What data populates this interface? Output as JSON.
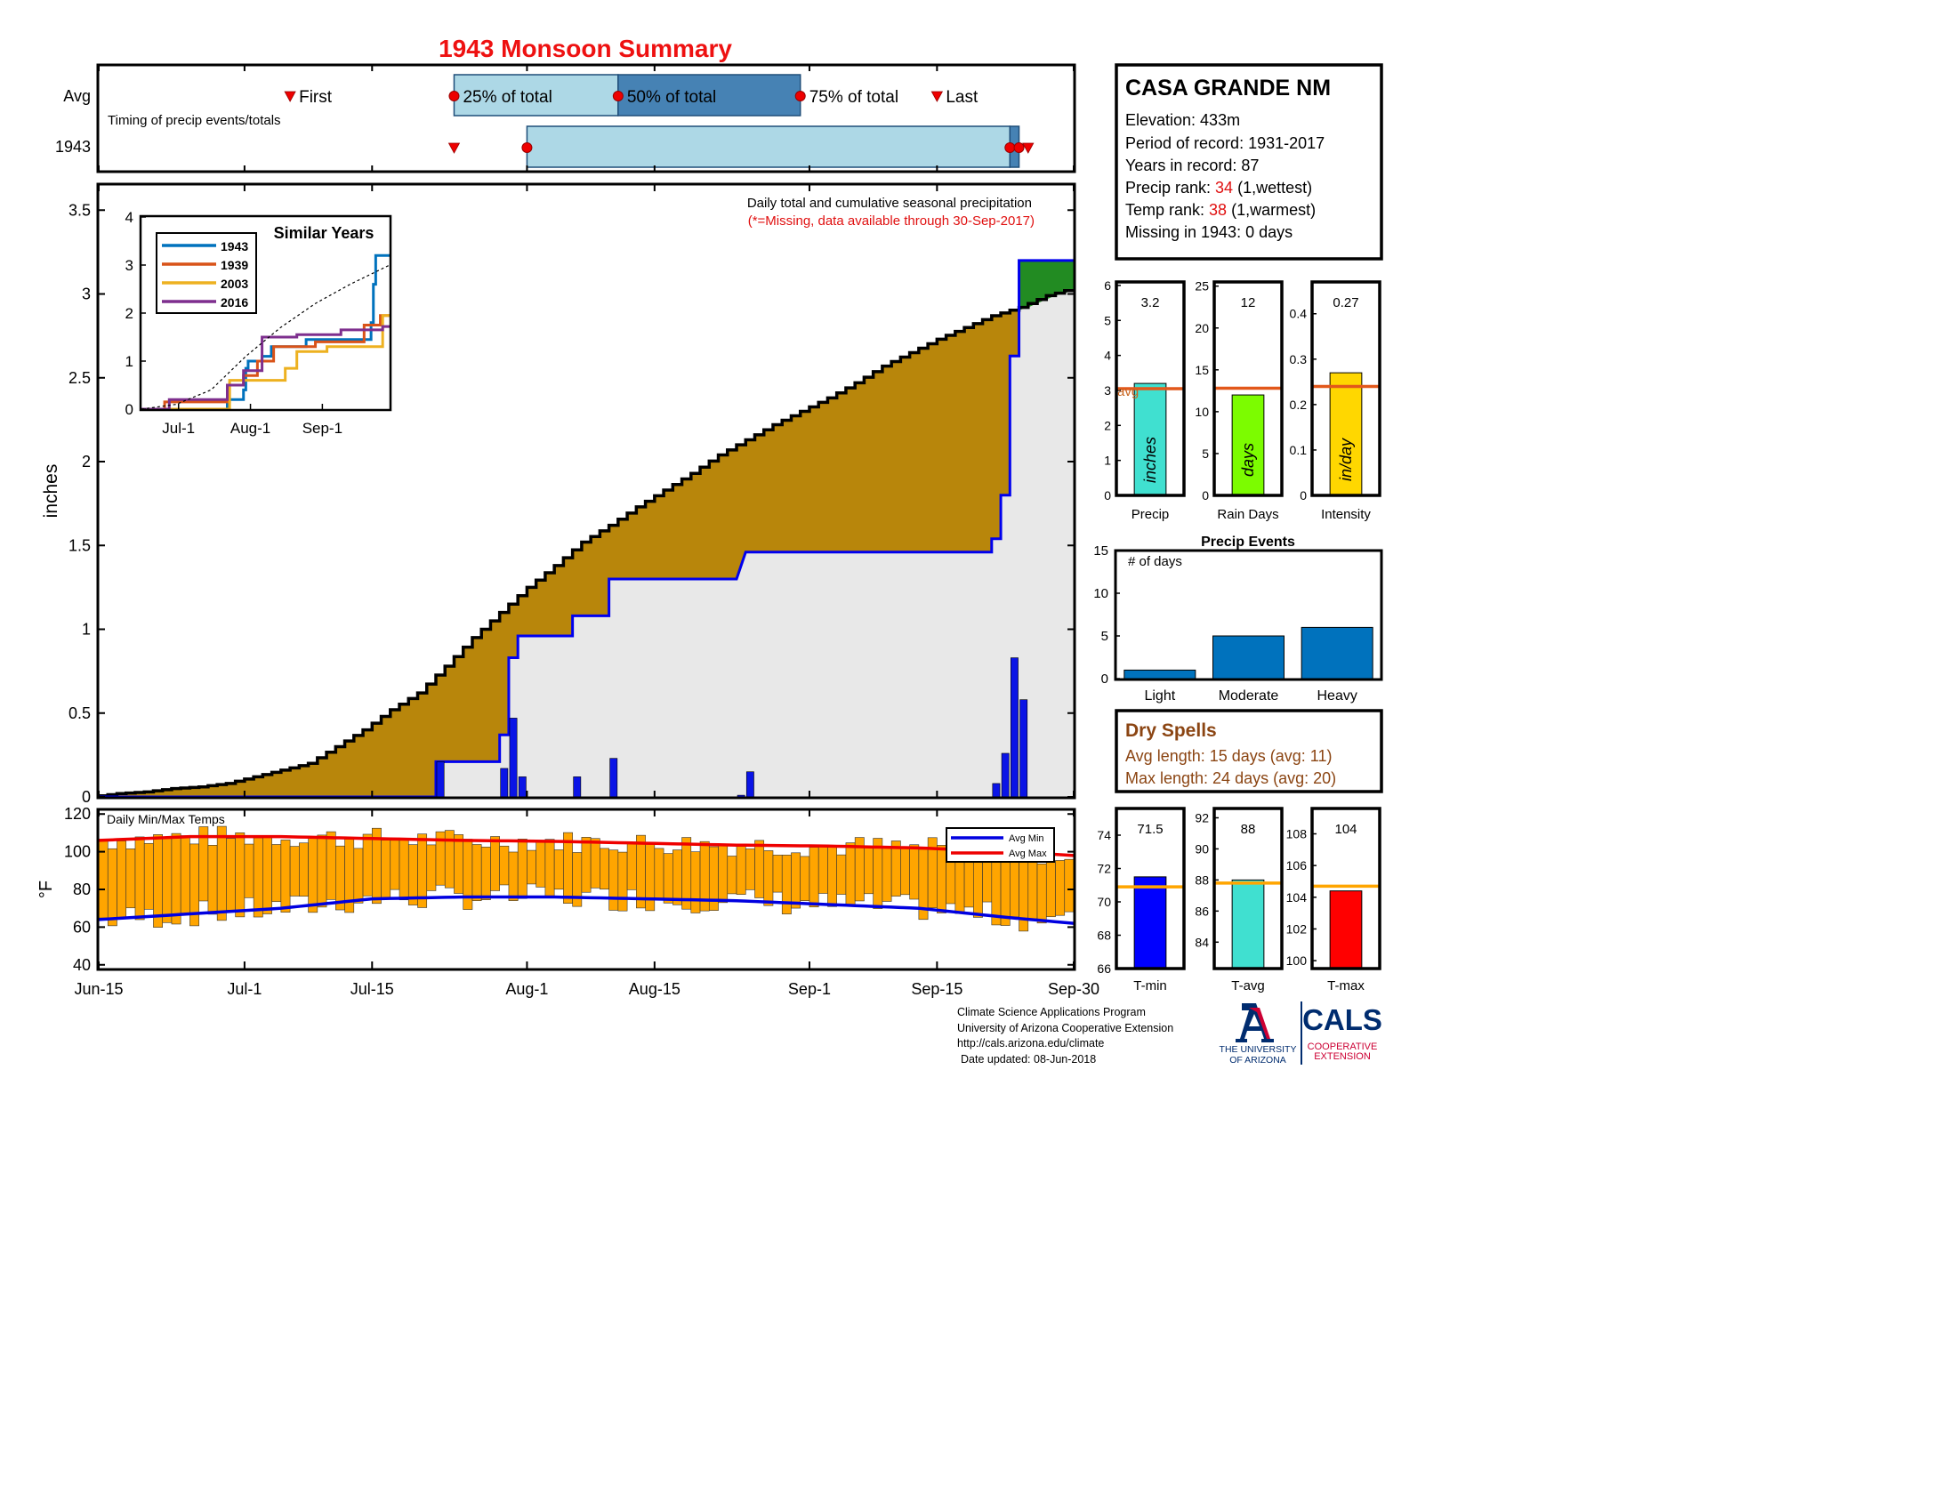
{
  "title": "1943 Monsoon Summary",
  "station": {
    "name": "CASA GRANDE NM",
    "elevation": "Elevation: 433m",
    "period": "Period of record: 1931-2017",
    "years": "Years in record: 87",
    "precip_rank_label": "Precip rank: ",
    "precip_rank_value": "34",
    "precip_rank_note": " (1,wettest)",
    "temp_rank_label": "Temp rank: ",
    "temp_rank_value": "38",
    "temp_rank_note": " (1,warmest)",
    "missing": "Missing in 1943: 0 days"
  },
  "timing": {
    "row_avg": "Avg",
    "row_year": "1943",
    "caption": "Timing of precip events/totals",
    "first": "First",
    "q25": "25% of total",
    "q50": "50% of total",
    "q75": "75% of total",
    "last": "Last",
    "avg": {
      "first": 21,
      "q25": 39,
      "q50": 57,
      "q75": 77,
      "last": 92
    },
    "year": {
      "first": 39,
      "q25": 47,
      "q50": 100,
      "q75": 101,
      "last": 102
    }
  },
  "dates": {
    "ticks": [
      "Jun-15",
      "Jul-1",
      "Jul-15",
      "Aug-1",
      "Aug-15",
      "Sep-1",
      "Sep-15",
      "Sep-30"
    ],
    "tick_days": [
      0,
      16,
      30,
      47,
      61,
      78,
      92,
      107
    ]
  },
  "main": {
    "note1": "Daily total and cumulative seasonal precipitation",
    "note2": "(*=Missing, data available through 30-Sep-2017)",
    "ylabel": "inches",
    "yticks": [
      "0",
      "0.5",
      "1",
      "1.5",
      "2",
      "2.5",
      "3",
      "3.5"
    ]
  },
  "similar": {
    "title": "Similar Years",
    "xticks": [
      "Jul-1",
      "Aug-1",
      "Sep-1"
    ],
    "yticks": [
      "0",
      "1",
      "2",
      "3",
      "4"
    ],
    "years": [
      {
        "name": "1943",
        "color": "#0072BD"
      },
      {
        "name": "1939",
        "color": "#D95319"
      },
      {
        "name": "2003",
        "color": "#EDB120"
      },
      {
        "name": "2016",
        "color": "#7E2F8E"
      }
    ]
  },
  "temps": {
    "label": "Daily Min/Max Temps",
    "ylabel": "°F",
    "yticks": [
      "40",
      "60",
      "80",
      "100",
      "120"
    ],
    "legend_min": "Avg Min",
    "legend_max": "Avg Max"
  },
  "stats": {
    "precip": {
      "label": "Precip",
      "value_text": "3.2",
      "unit": "inches",
      "value": 3.2,
      "avg": 3.05,
      "yticks": [
        "0",
        "1",
        "2",
        "3",
        "4",
        "5",
        "6"
      ],
      "avg_label": "avg",
      "color": "#40E0D0"
    },
    "raindays": {
      "label": "Rain Days",
      "value_text": "12",
      "unit": "days",
      "value": 12,
      "avg": 12.8,
      "yticks": [
        "0",
        "5",
        "10",
        "15",
        "20",
        "25"
      ],
      "color": "#7CFC00"
    },
    "intensity": {
      "label": "Intensity",
      "value_text": "0.27",
      "unit": "in/day",
      "value": 0.27,
      "avg": 0.24,
      "yticks": [
        "0",
        "0.1",
        "0.2",
        "0.3",
        "0.4"
      ],
      "color": "#FFD700"
    }
  },
  "events": {
    "title": "Precip Events",
    "caption": "# of days",
    "yticks": [
      "0",
      "5",
      "10",
      "15"
    ],
    "categories": [
      "Light",
      "Moderate",
      "Heavy"
    ],
    "values": [
      1,
      5,
      6
    ]
  },
  "dry_spells": {
    "title": "Dry Spells",
    "avg_length": "Avg length: 15 days (avg: 11)",
    "max_length": "Max length: 24 days (avg: 20)"
  },
  "temp_stats": {
    "tmin": {
      "label": "T-min",
      "value_text": "71.5",
      "value": 71.5,
      "avg": 70.9,
      "yticks": [
        "66",
        "68",
        "70",
        "72",
        "74"
      ],
      "color": "#0000FF"
    },
    "tavg": {
      "label": "T-avg",
      "value_text": "88",
      "value": 88.0,
      "avg": 87.8,
      "yticks": [
        "84",
        "86",
        "88",
        "90",
        "92"
      ],
      "color": "#40E0D0"
    },
    "tmax": {
      "label": "T-max",
      "value_text": "104",
      "value": 104.4,
      "avg": 104.7,
      "yticks": [
        "100",
        "102",
        "104",
        "106",
        "108"
      ],
      "color": "#FF0000"
    }
  },
  "footer": {
    "line1": "Climate Science Applications Program",
    "line2": "University of Arizona Cooperative Extension",
    "line3": "http://cals.arizona.edu/climate",
    "line4": "Date updated: 08-Jun-2018"
  },
  "logos": {
    "ua_line1": "THE UNIVERSITY",
    "ua_line2": "OF ARIZONA",
    "cals": "CALS",
    "cals_line1": "COOPERATIVE",
    "cals_line2": "EXTENSION"
  },
  "chart_data": [
    {
      "type": "area",
      "title": "Daily total and cumulative seasonal precipitation",
      "ylabel": "inches",
      "xlabel": "",
      "x_unit": "day index from Jun-15",
      "ylim": [
        0,
        3.65
      ],
      "series": [
        {
          "name": "avg",
          "points": [
            [
              0,
              0
            ],
            [
              3,
              0.02
            ],
            [
              6,
              0.03
            ],
            [
              9,
              0.05
            ],
            [
              12,
              0.06
            ],
            [
              15,
              0.08
            ],
            [
              18,
              0.12
            ],
            [
              21,
              0.16
            ],
            [
              24,
              0.2
            ],
            [
              27,
              0.3
            ],
            [
              30,
              0.4
            ],
            [
              33,
              0.52
            ],
            [
              36,
              0.62
            ],
            [
              39,
              0.78
            ],
            [
              42,
              0.95
            ],
            [
              45,
              1.1
            ],
            [
              48,
              1.25
            ],
            [
              51,
              1.38
            ],
            [
              54,
              1.52
            ],
            [
              57,
              1.62
            ],
            [
              60,
              1.73
            ],
            [
              63,
              1.83
            ],
            [
              66,
              1.93
            ],
            [
              69,
              2.04
            ],
            [
              72,
              2.13
            ],
            [
              75,
              2.22
            ],
            [
              78,
              2.3
            ],
            [
              81,
              2.38
            ],
            [
              84,
              2.47
            ],
            [
              87,
              2.57
            ],
            [
              90,
              2.65
            ],
            [
              93,
              2.73
            ],
            [
              96,
              2.8
            ],
            [
              99,
              2.87
            ],
            [
              102,
              2.92
            ],
            [
              105,
              2.99
            ],
            [
              107,
              3.02
            ]
          ]
        },
        {
          "name": "1943",
          "points": [
            [
              0,
              0
            ],
            [
              37,
              0
            ],
            [
              37,
              0.21
            ],
            [
              44,
              0.21
            ],
            [
              44,
              0.37
            ],
            [
              45,
              0.37
            ],
            [
              45,
              0.83
            ],
            [
              46,
              0.83
            ],
            [
              46,
              0.96
            ],
            [
              51,
              0.96
            ],
            [
              51,
              0.96
            ],
            [
              52,
              0.96
            ],
            [
              52,
              1.08
            ],
            [
              56,
              1.08
            ],
            [
              56,
              1.3
            ],
            [
              70,
              1.3
            ],
            [
              70,
              1.3
            ],
            [
              71,
              1.46
            ],
            [
              90,
              1.46
            ],
            [
              98,
              1.46
            ],
            [
              98,
              1.54
            ],
            [
              99,
              1.54
            ],
            [
              99,
              1.8
            ],
            [
              100,
              1.8
            ],
            [
              100,
              2.63
            ],
            [
              101,
              2.63
            ],
            [
              101,
              3.2
            ],
            [
              107,
              3.2
            ]
          ]
        }
      ],
      "daily_bars": [
        [
          37,
          0.21
        ],
        [
          44,
          0.17
        ],
        [
          45,
          0.47
        ],
        [
          46,
          0.12
        ],
        [
          52,
          0.12
        ],
        [
          56,
          0.23
        ],
        [
          70,
          0.01
        ],
        [
          71,
          0.15
        ],
        [
          98,
          0.08
        ],
        [
          99,
          0.26
        ],
        [
          100,
          0.83
        ],
        [
          101,
          0.58
        ]
      ]
    },
    {
      "type": "line",
      "title": "Similar Years",
      "categories_note": "Jun-15 to Sep-30",
      "ylim": [
        0,
        4
      ],
      "series": [
        {
          "name": "1943",
          "points": [
            [
              0,
              0
            ],
            [
              37,
              0
            ],
            [
              37,
              0.2
            ],
            [
              44,
              0.2
            ],
            [
              44,
              0.4
            ],
            [
              45,
              0.4
            ],
            [
              45,
              0.85
            ],
            [
              46,
              0.85
            ],
            [
              46,
              1
            ],
            [
              52,
              1
            ],
            [
              52,
              1.1
            ],
            [
              56,
              1.1
            ],
            [
              56,
              1.3
            ],
            [
              71,
              1.3
            ],
            [
              71,
              1.45
            ],
            [
              99,
              1.45
            ],
            [
              99,
              1.8
            ],
            [
              100,
              1.8
            ],
            [
              100,
              2.6
            ],
            [
              101,
              2.6
            ],
            [
              101,
              3.2
            ],
            [
              107,
              3.2
            ]
          ]
        },
        {
          "name": "1939",
          "points": [
            [
              0,
              0
            ],
            [
              10,
              0
            ],
            [
              10,
              0.15
            ],
            [
              38,
              0.15
            ],
            [
              38,
              0.5
            ],
            [
              44,
              0.5
            ],
            [
              44,
              0.7
            ],
            [
              50,
              0.7
            ],
            [
              50,
              1.0
            ],
            [
              57,
              1.0
            ],
            [
              57,
              1.3
            ],
            [
              75,
              1.3
            ],
            [
              75,
              1.4
            ],
            [
              96,
              1.4
            ],
            [
              96,
              1.75
            ],
            [
              103,
              1.75
            ],
            [
              103,
              1.95
            ],
            [
              107,
              1.95
            ]
          ]
        },
        {
          "name": "2003",
          "points": [
            [
              0,
              0
            ],
            [
              38,
              0
            ],
            [
              38,
              0.6
            ],
            [
              47,
              0.6
            ],
            [
              47,
              0.6
            ],
            [
              62,
              0.6
            ],
            [
              62,
              0.85
            ],
            [
              67,
              0.85
            ],
            [
              67,
              1.2
            ],
            [
              80,
              1.2
            ],
            [
              80,
              1.3
            ],
            [
              104,
              1.3
            ],
            [
              104,
              1.95
            ],
            [
              107,
              1.95
            ]
          ]
        },
        {
          "name": "2016",
          "points": [
            [
              0,
              0
            ],
            [
              12,
              0
            ],
            [
              12,
              0.2
            ],
            [
              37,
              0.2
            ],
            [
              37,
              0.5
            ],
            [
              44,
              0.5
            ],
            [
              44,
              0.8
            ],
            [
              52,
              0.8
            ],
            [
              52,
              1.5
            ],
            [
              67,
              1.5
            ],
            [
              67,
              1.55
            ],
            [
              86,
              1.55
            ],
            [
              86,
              1.65
            ],
            [
              104,
              1.65
            ],
            [
              104,
              1.72
            ],
            [
              107,
              1.72
            ]
          ]
        },
        {
          "name": "avg",
          "points": [
            [
              0,
              0
            ],
            [
              15,
              0.1
            ],
            [
              30,
              0.4
            ],
            [
              45,
              1.1
            ],
            [
              60,
              1.7
            ],
            [
              75,
              2.2
            ],
            [
              90,
              2.6
            ],
            [
              107,
              3.0
            ]
          ]
        }
      ]
    },
    {
      "type": "bar",
      "title": "Daily Min/Max Temps",
      "ylabel": "°F",
      "ylim": [
        38,
        122
      ],
      "series": [
        {
          "name": "Avg Min",
          "points": [
            [
              0,
              64
            ],
            [
              10,
              67
            ],
            [
              20,
              70
            ],
            [
              30,
              75
            ],
            [
              40,
              76
            ],
            [
              50,
              76
            ],
            [
              60,
              75
            ],
            [
              70,
              74
            ],
            [
              80,
              72
            ],
            [
              90,
              70
            ],
            [
              100,
              65
            ],
            [
              107,
              62
            ]
          ]
        },
        {
          "name": "Avg Max",
          "points": [
            [
              0,
              106
            ],
            [
              10,
              108
            ],
            [
              20,
              108
            ],
            [
              30,
              107
            ],
            [
              40,
              106
            ],
            [
              50,
              105.5
            ],
            [
              60,
              104.5
            ],
            [
              70,
              103.5
            ],
            [
              80,
              103
            ],
            [
              90,
              102
            ],
            [
              100,
              100
            ],
            [
              107,
              98
            ]
          ]
        }
      ]
    },
    {
      "type": "bar",
      "title": "Precip Events",
      "categories": [
        "Light",
        "Moderate",
        "Heavy"
      ],
      "values": [
        1,
        5,
        6
      ],
      "ylim": [
        0,
        15
      ]
    },
    {
      "type": "bar",
      "categories": [
        "Precip",
        "Rain Days",
        "Intensity",
        "T-min",
        "T-avg",
        "T-max"
      ],
      "values": [
        3.2,
        12,
        0.27,
        71.5,
        88,
        104.4
      ],
      "averages": [
        3.05,
        12.8,
        0.24,
        70.9,
        87.8,
        104.7
      ]
    }
  ]
}
